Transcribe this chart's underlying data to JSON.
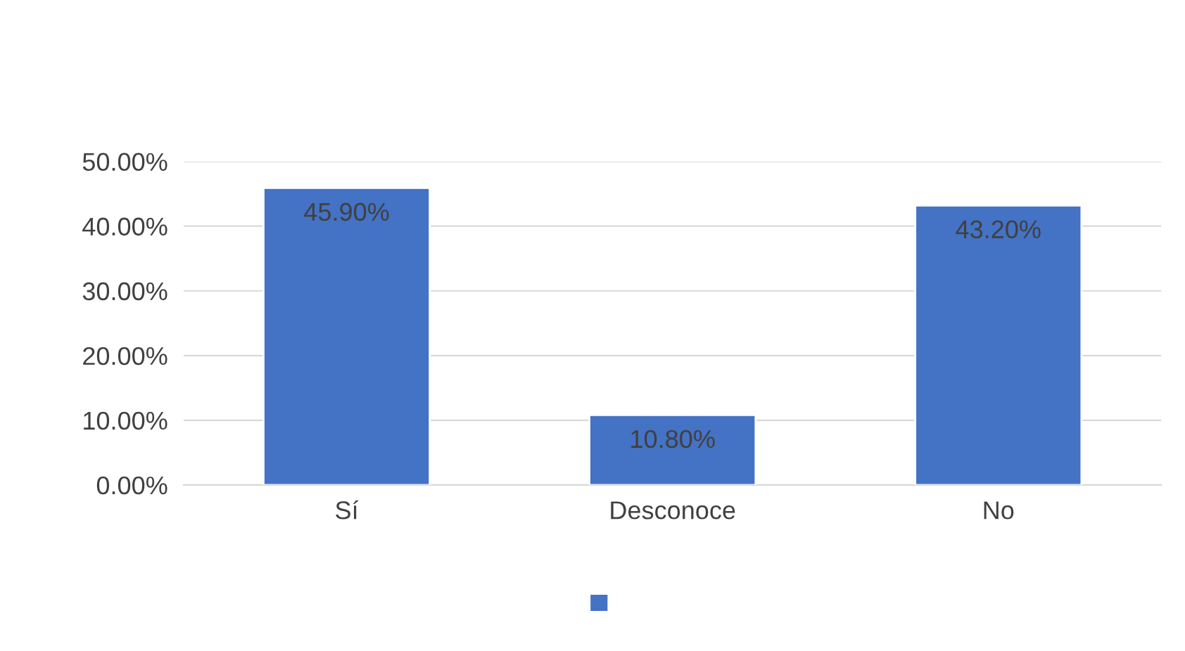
{
  "chart_data": {
    "type": "bar",
    "categories": [
      "Sí",
      "Desconoce",
      "No"
    ],
    "series": [
      {
        "color": "#4472c4",
        "values": [
          45.9,
          10.8,
          43.2
        ],
        "value_labels": [
          "45.90%",
          "10.80%",
          "43.20%"
        ]
      }
    ],
    "ylim": [
      0,
      50
    ],
    "yticks": [
      {
        "value": 0,
        "label": "0.00%"
      },
      {
        "value": 10,
        "label": "10.00%"
      },
      {
        "value": 20,
        "label": "20.00%"
      },
      {
        "value": 30,
        "label": "30.00%"
      },
      {
        "value": 40,
        "label": "40.00%"
      },
      {
        "value": 50,
        "label": "50.00%"
      }
    ],
    "grid": "y"
  }
}
